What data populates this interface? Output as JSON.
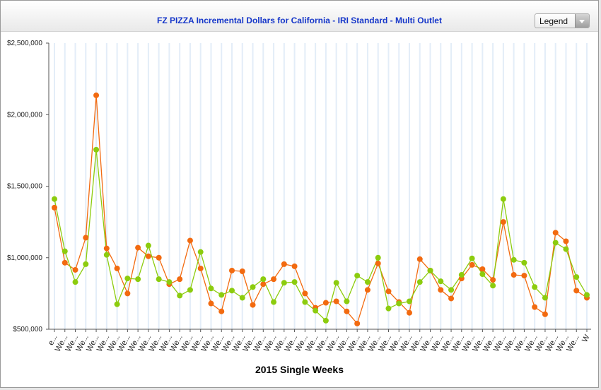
{
  "window": {
    "title": "FZ PIZZA Incremental Dollars for California - IRI Standard - Multi Outlet",
    "legend_select_label": "Legend"
  },
  "colors": {
    "series_orange": "#f26a10",
    "series_green": "#8ccc0e",
    "gridline": "#e3edf8",
    "axis": "#555555",
    "title": "#1536c9"
  },
  "icons": {
    "legend_dropdown": "chevron-down-icon"
  },
  "chart_data": {
    "type": "line",
    "title": "FZ PIZZA Incremental Dollars for California - IRI Standard - Multi Outlet",
    "xlabel": "2015 Single Weeks",
    "ylabel": "",
    "ylim": [
      500000,
      2500000
    ],
    "yticks": [
      500000,
      1000000,
      1500000,
      2000000,
      2500000
    ],
    "ytick_labels": [
      "$500,000",
      "$1,000,000",
      "$1,500,000",
      "$2,000,000",
      "$2,500,000"
    ],
    "xtick_labels": [
      "e...",
      "We...",
      "We...",
      "We...",
      "We...",
      "We...",
      "We...",
      "We...",
      "We...",
      "We...",
      "We...",
      "We...",
      "We...",
      "We...",
      "We...",
      "We...",
      "We...",
      "We...",
      "We...",
      "We...",
      "We...",
      "We...",
      "We...",
      "We...",
      "We...",
      "We...",
      "We...",
      "We...",
      "We...",
      "We...",
      "We...",
      "We...",
      "We...",
      "We...",
      "We...",
      "We...",
      "We...",
      "We...",
      "We...",
      "We...",
      "We...",
      "We...",
      "We...",
      "We...",
      "We...",
      "We...",
      "We...",
      "We...",
      "We...",
      "We...",
      "We...",
      "W"
    ],
    "grid": true,
    "legend": "hidden",
    "series": [
      {
        "color": "#f26a10",
        "values": [
          1350000,
          965000,
          915000,
          1140000,
          2135000,
          1065000,
          925000,
          750000,
          1070000,
          1010000,
          1000000,
          815000,
          850000,
          1120000,
          925000,
          680000,
          625000,
          910000,
          905000,
          670000,
          815000,
          850000,
          955000,
          940000,
          750000,
          650000,
          685000,
          695000,
          625000,
          540000,
          775000,
          960000,
          765000,
          690000,
          615000,
          990000,
          910000,
          775000,
          715000,
          855000,
          950000,
          920000,
          845000,
          1250000,
          880000,
          875000,
          655000,
          605000,
          1175000,
          1115000,
          770000,
          720000
        ]
      },
      {
        "color": "#8ccc0e",
        "values": [
          1410000,
          1045000,
          830000,
          955000,
          1755000,
          1020000,
          675000,
          855000,
          850000,
          1085000,
          850000,
          830000,
          735000,
          775000,
          1040000,
          785000,
          740000,
          770000,
          720000,
          795000,
          850000,
          690000,
          825000,
          830000,
          690000,
          630000,
          560000,
          825000,
          695000,
          875000,
          830000,
          1000000,
          645000,
          680000,
          695000,
          830000,
          910000,
          835000,
          775000,
          880000,
          995000,
          885000,
          805000,
          1410000,
          985000,
          965000,
          795000,
          720000,
          1105000,
          1060000,
          865000,
          740000
        ]
      }
    ]
  }
}
